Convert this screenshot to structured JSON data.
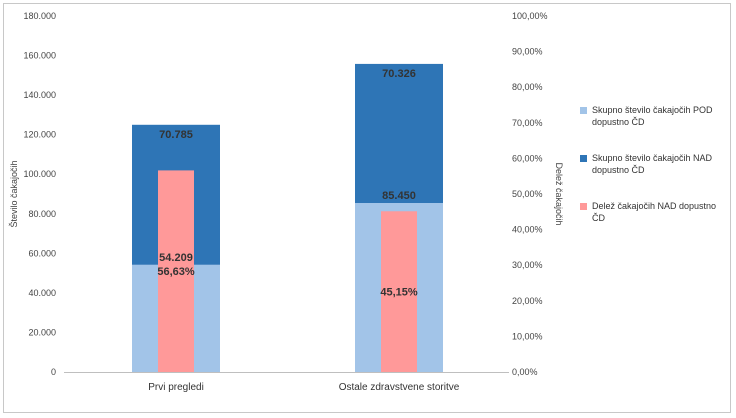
{
  "chart_data": {
    "type": "bar",
    "categories": [
      "Prvi pregledi",
      "Ostale zdravstvene storitve"
    ],
    "series": [
      {
        "name": "Skupno število čakajočih POD dopustno ČD",
        "axis": "primary",
        "stacked": true,
        "color": "#a2c4e8",
        "values": [
          54209,
          85450
        ],
        "labels": [
          "54.209",
          "85.450"
        ]
      },
      {
        "name": "Skupno število čakajočih NAD dopustno ČD",
        "axis": "primary",
        "stacked": true,
        "color": "#2e75b6",
        "values": [
          70785,
          70326
        ],
        "labels": [
          "70.785",
          "70.326"
        ]
      },
      {
        "name": "Delež čakajočih NAD dopustno ČD",
        "axis": "secondary",
        "color": "#ff9999",
        "values": [
          56.63,
          45.15
        ],
        "labels": [
          "56,63%",
          "45,15%"
        ]
      }
    ],
    "ylabel": "Število čakajočih",
    "y2label": "Delež čakajočih",
    "ylim": [
      0,
      180000
    ],
    "y2lim": [
      0,
      100
    ],
    "yticks": [
      "0",
      "20.000",
      "40.000",
      "60.000",
      "80.000",
      "100.000",
      "120.000",
      "140.000",
      "160.000",
      "180.000"
    ],
    "y2ticks": [
      "0,00%",
      "10,00%",
      "20,00%",
      "30,00%",
      "40,00%",
      "50,00%",
      "60,00%",
      "70,00%",
      "80,00%",
      "90,00%",
      "100,00%"
    ],
    "legend_position": "right",
    "grid": false
  }
}
